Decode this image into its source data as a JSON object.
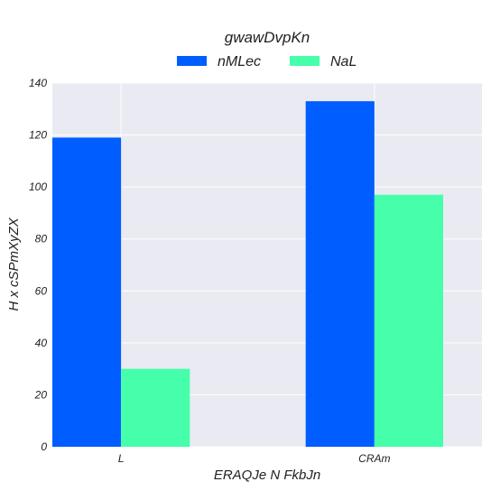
{
  "chart_data": {
    "type": "bar",
    "categories": [
      "L",
      "CRAm"
    ],
    "series": [
      {
        "name": "nMLec",
        "values": [
          119,
          133
        ],
        "color": "#005dff"
      },
      {
        "name": "NaL",
        "values": [
          30,
          97
        ],
        "color": "#45ffaa"
      }
    ],
    "xlabel": "ERAQJe N FkbJn",
    "ylabel": "H x cSPmXyZX",
    "ylim": [
      0,
      140
    ],
    "yticks": [
      0,
      20,
      40,
      60,
      80,
      100,
      120,
      140
    ],
    "legend_title": "gwawDvpKn",
    "legend_position": "top",
    "grid": true,
    "background": "#eaeaf2"
  }
}
